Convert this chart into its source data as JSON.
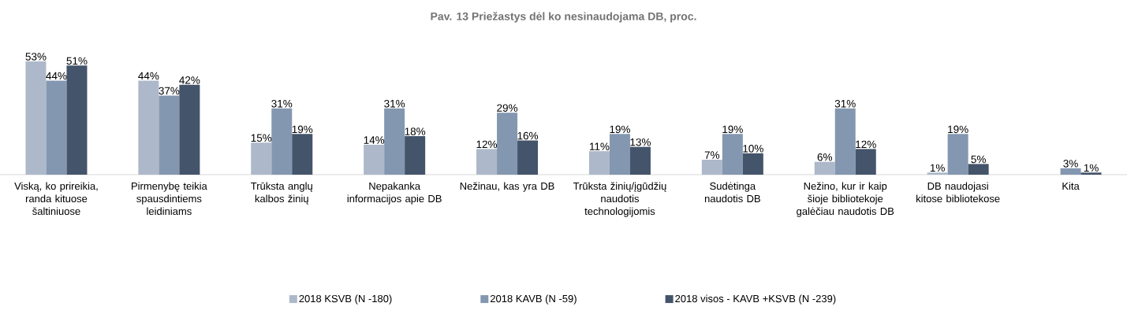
{
  "chart_data": {
    "type": "bar",
    "title": "Pav. 13 Priežastys dėl ko nesinaudojama DB, proc.",
    "categories": [
      "Viską, ko prireikia, randa kituose šaltiniuose",
      "Pirmenybę teikia spausdintiems leidiniams",
      "Trūksta anglų kalbos žinių",
      "Nepakanka informacijos apie DB",
      "Nežinau, kas yra DB",
      "Trūksta žinių/įgūdžių naudotis technologijomis",
      "Sudėtinga naudotis DB",
      "Nežino, kur ir kaip šioje bibliotekoje galėčiau naudotis DB",
      "DB naudojasi kitose bibliotekose",
      "Kita"
    ],
    "series": [
      {
        "name": "2018 KSVB (N -180)",
        "color": "#adb9ca",
        "values": [
          53,
          44,
          15,
          14,
          12,
          11,
          7,
          6,
          1,
          0
        ],
        "value_labels": [
          "53%",
          "44%",
          "15%",
          "14%",
          "12%",
          "11%",
          "7%",
          "6%",
          "1%",
          null
        ]
      },
      {
        "name": "2018 KAVB (N -59)",
        "color": "#8497b0",
        "values": [
          44,
          37,
          31,
          31,
          29,
          19,
          19,
          31,
          19,
          3
        ],
        "value_labels": [
          "44%",
          "37%",
          "31%",
          "31%",
          "29%",
          "19%",
          "19%",
          "31%",
          "19%",
          "3%"
        ]
      },
      {
        "name": "2018 visos - KAVB +KSVB (N -239)",
        "color": "#44546a",
        "values": [
          51,
          42,
          19,
          18,
          16,
          13,
          10,
          12,
          5,
          1
        ],
        "value_labels": [
          "51%",
          "42%",
          "19%",
          "18%",
          "16%",
          "13%",
          "10%",
          "12%",
          "5%",
          "1%"
        ]
      }
    ],
    "legend": "bottom"
  }
}
